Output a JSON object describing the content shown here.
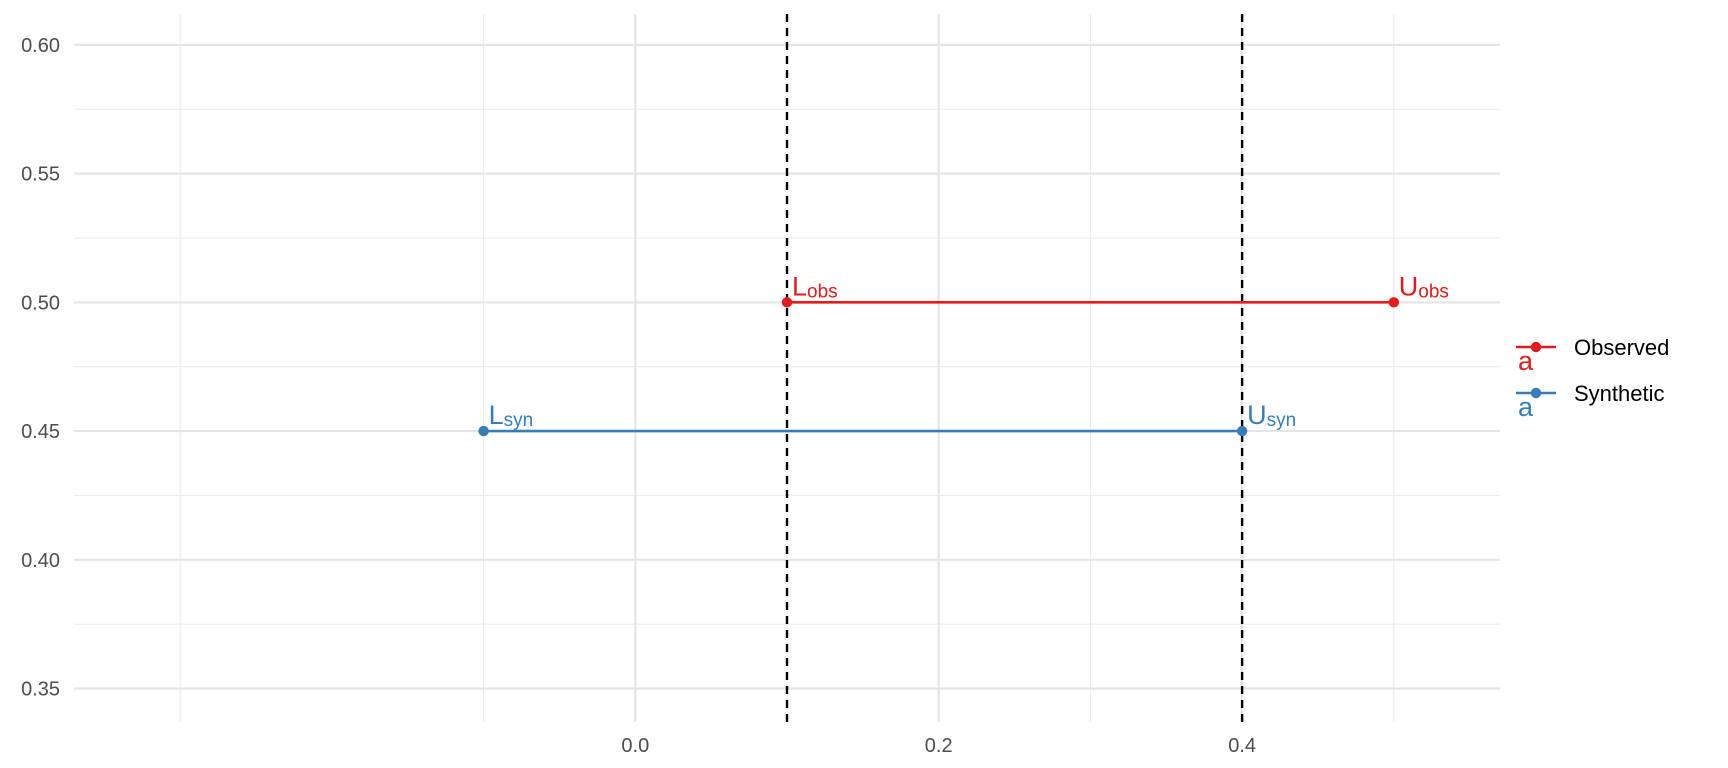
{
  "chart_data": {
    "type": "line",
    "title": "",
    "xlabel": "",
    "ylabel": "",
    "xlim": [
      -0.37,
      0.57
    ],
    "ylim": [
      0.337,
      0.612
    ],
    "x_ticks": [
      0.0,
      0.2,
      0.4
    ],
    "x_tick_labels": [
      "0.0",
      "0.2",
      "0.4"
    ],
    "y_ticks": [
      0.35,
      0.4,
      0.45,
      0.5,
      0.55,
      0.6
    ],
    "y_tick_labels": [
      "0.35",
      "0.40",
      "0.45",
      "0.50",
      "0.55",
      "0.60"
    ],
    "grid": true,
    "reference_lines": [
      {
        "orientation": "vertical",
        "x": 0.1,
        "style": "dashed",
        "color": "#000000"
      },
      {
        "orientation": "vertical",
        "x": 0.4,
        "style": "dashed",
        "color": "#000000"
      }
    ],
    "series": [
      {
        "name": "Observed",
        "color": "#e41a1c",
        "x": [
          0.1,
          0.5
        ],
        "y": [
          0.5,
          0.5
        ],
        "point_labels": [
          {
            "main": "L",
            "sub": "obs"
          },
          {
            "main": "U",
            "sub": "obs"
          }
        ]
      },
      {
        "name": "Synthetic",
        "color": "#377eb8",
        "x": [
          -0.1,
          0.4
        ],
        "y": [
          0.45,
          0.45
        ],
        "point_labels": [
          {
            "main": "L",
            "sub": "syn"
          },
          {
            "main": "U",
            "sub": "syn"
          }
        ]
      }
    ],
    "legend": {
      "placement": "right",
      "key_glyph": "a",
      "entries": [
        "Observed",
        "Synthetic"
      ]
    }
  }
}
